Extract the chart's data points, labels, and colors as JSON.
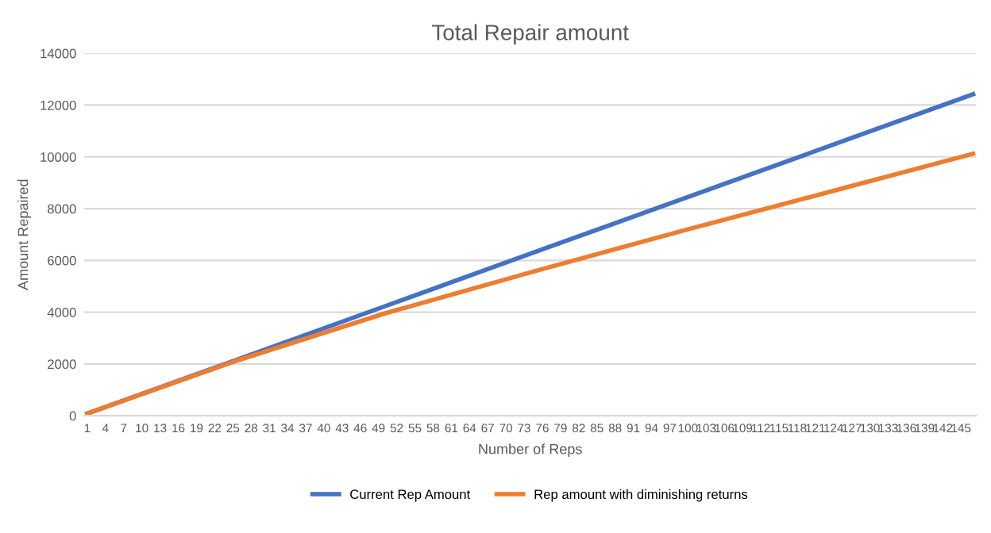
{
  "chart_data": {
    "type": "line",
    "title": "Total Repair amount",
    "xlabel": "Number of Reps",
    "ylabel": "Amount Repaired",
    "xlim": [
      0.5,
      147.5
    ],
    "xticks": [
      1,
      4,
      7,
      10,
      13,
      16,
      19,
      22,
      25,
      28,
      31,
      34,
      37,
      40,
      43,
      46,
      49,
      52,
      55,
      58,
      61,
      64,
      67,
      70,
      73,
      76,
      79,
      82,
      85,
      88,
      91,
      94,
      97,
      100,
      103,
      106,
      109,
      112,
      115,
      118,
      121,
      124,
      127,
      130,
      133,
      136,
      139,
      142,
      145
    ],
    "ylim": [
      0,
      14000
    ],
    "yticks": [
      0,
      2000,
      4000,
      6000,
      8000,
      10000,
      12000,
      14000
    ],
    "grid": "y",
    "legend": "bottom",
    "marker": "none",
    "line_style": "solid",
    "series": [
      {
        "name": "Current Rep Amount",
        "color": "#4472c4",
        "x": [
          1,
          25,
          50,
          75,
          100,
          125,
          147
        ],
        "values": [
          85,
          2110,
          4225,
          6340,
          8450,
          10560,
          12420
        ]
      },
      {
        "name": "Rep amount with diminishing returns",
        "color": "#ed7d31",
        "x": [
          1,
          25,
          50,
          75,
          100,
          125,
          147
        ],
        "values": [
          85,
          2080,
          3950,
          5600,
          7200,
          8750,
          10120
        ]
      }
    ]
  }
}
